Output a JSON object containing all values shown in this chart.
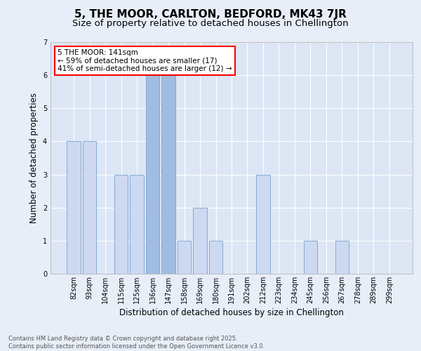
{
  "title": "5, THE MOOR, CARLTON, BEDFORD, MK43 7JR",
  "subtitle": "Size of property relative to detached houses in Chellington",
  "xlabel": "Distribution of detached houses by size in Chellington",
  "ylabel": "Number of detached properties",
  "categories": [
    "82sqm",
    "93sqm",
    "104sqm",
    "115sqm",
    "125sqm",
    "136sqm",
    "147sqm",
    "158sqm",
    "169sqm",
    "180sqm",
    "191sqm",
    "202sqm",
    "212sqm",
    "223sqm",
    "234sqm",
    "245sqm",
    "256sqm",
    "267sqm",
    "278sqm",
    "289sqm",
    "299sqm"
  ],
  "values": [
    4,
    4,
    0,
    3,
    3,
    6,
    6,
    1,
    2,
    1,
    0,
    0,
    3,
    0,
    0,
    1,
    0,
    1,
    0,
    0,
    0
  ],
  "highlight_indices": [
    5,
    6
  ],
  "bar_color_normal": "#ccd9f0",
  "bar_color_highlight": "#a0bce0",
  "bar_edge_color": "#7a9fd4",
  "background_color": "#dce6f5",
  "fig_background": "#e8eef8",
  "ylim": [
    0,
    7
  ],
  "yticks": [
    0,
    1,
    2,
    3,
    4,
    5,
    6,
    7
  ],
  "annotation_text": "5 THE MOOR: 141sqm\n← 59% of detached houses are smaller (17)\n41% of semi-detached houses are larger (12) →",
  "footer_text": "Contains HM Land Registry data © Crown copyright and database right 2025.\nContains public sector information licensed under the Open Government Licence v3.0.",
  "title_fontsize": 11,
  "subtitle_fontsize": 9.5,
  "xlabel_fontsize": 8.5,
  "ylabel_fontsize": 8.5,
  "tick_fontsize": 7,
  "footer_fontsize": 6,
  "annotation_fontsize": 7.5
}
